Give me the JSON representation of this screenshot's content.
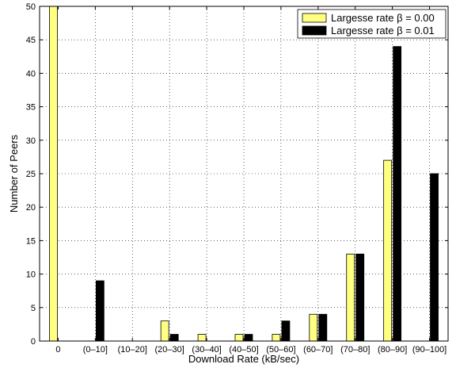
{
  "chart_data": {
    "type": "bar",
    "categories": [
      "0",
      "(0–10]",
      "(10–20]",
      "(20–30]",
      "(30–40]",
      "(40–50]",
      "(50–60]",
      "(60–70]",
      "(70–80]",
      "(80–90]",
      "(90–100]"
    ],
    "series": [
      {
        "name": "Largesse rate  β = 0.00",
        "color": "#ffff80",
        "values": [
          50,
          0,
          0,
          3,
          1,
          1,
          1,
          4,
          13,
          27,
          0
        ]
      },
      {
        "name": "Largesse rate  β = 0.01",
        "color": "#000000",
        "values": [
          0,
          9,
          0,
          1,
          0,
          1,
          3,
          4,
          13,
          44,
          25
        ]
      }
    ],
    "xlabel": "Download Rate (kB/sec)",
    "ylabel": "Number of Peers",
    "ylim": [
      0,
      50
    ],
    "yticks": [
      0,
      5,
      10,
      15,
      20,
      25,
      30,
      35,
      40,
      45,
      50
    ],
    "grid": true,
    "legend": "top-right"
  }
}
